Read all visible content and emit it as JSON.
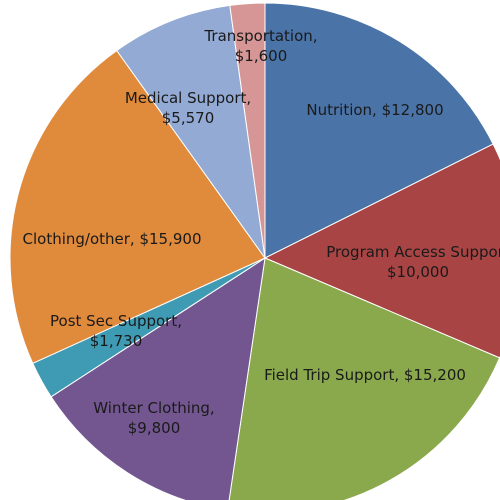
{
  "chart_data": {
    "type": "pie",
    "start_angle_deg": 0,
    "direction": "clockwise",
    "slices": [
      {
        "label": "Nutrition",
        "value": 12800,
        "display": [
          "Nutrition, $12,800"
        ],
        "color": "#4a73a8"
      },
      {
        "label": "Program Access Support",
        "value": 10000,
        "display": [
          "Program Access Support",
          "$10,000"
        ],
        "color": "#a84444"
      },
      {
        "label": "Field Trip Support",
        "value": 15200,
        "display": [
          "Field Trip Support, $15,200"
        ],
        "color": "#8aa94c"
      },
      {
        "label": "Winter Clothing",
        "value": 9800,
        "display": [
          "Winter Clothing,",
          "$9,800"
        ],
        "color": "#735690"
      },
      {
        "label": "Post Sec Support",
        "value": 1730,
        "display": [
          "Post Sec Support,",
          "$1,730"
        ],
        "color": "#3e9bb3"
      },
      {
        "label": "Clothing/other",
        "value": 15900,
        "display": [
          "Clothing/other, $15,900"
        ],
        "color": "#e08a3c"
      },
      {
        "label": "Medical Support",
        "value": 5570,
        "display": [
          "Medical Support,",
          "$5,570"
        ],
        "color": "#93aad4"
      },
      {
        "label": "Transportation",
        "value": 1600,
        "display": [
          "Transportation,",
          "$1,600"
        ],
        "color": "#d69695"
      }
    ]
  }
}
